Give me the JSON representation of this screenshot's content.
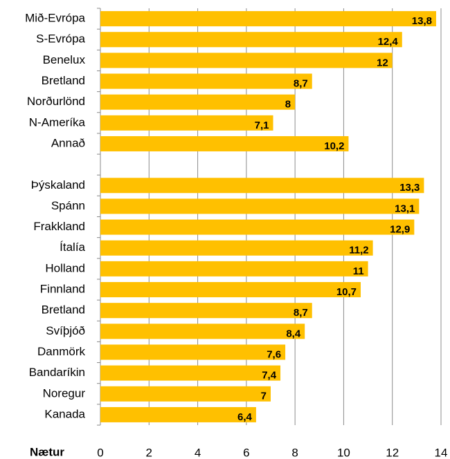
{
  "chart_data": {
    "type": "barh",
    "xlabel": "Nætur",
    "categories": [
      "Mið-Evrópa",
      "S-Evrópa",
      "Benelux",
      "Bretland",
      "Norðurlönd",
      "N-Ameríka",
      "Annað",
      null,
      "Þýskaland",
      "Spánn",
      "Frakkland",
      "Ítalía",
      "Holland",
      "Finnland",
      "Bretland",
      "Svíþjóð",
      "Danmörk",
      "Bandaríkin",
      "Noregur",
      "Kanada"
    ],
    "values": [
      13.8,
      12.4,
      12,
      8.7,
      8,
      7.1,
      10.2,
      null,
      13.3,
      13.1,
      12.9,
      11.2,
      11,
      10.7,
      8.7,
      8.4,
      7.6,
      7.4,
      7,
      6.4
    ],
    "value_labels": [
      "13,8",
      "12,4",
      "12",
      "8,7",
      "8",
      "7,1",
      "10,2",
      null,
      "13,3",
      "13,1",
      "12,9",
      "11,2",
      "11",
      "10,7",
      "8,7",
      "8,4",
      "7,6",
      "7,4",
      "7",
      "6,4"
    ],
    "color": "#ffc000",
    "xlim": [
      0,
      14
    ],
    "xticks": [
      0,
      2,
      4,
      6,
      8,
      10,
      12,
      14
    ],
    "grid": true
  }
}
